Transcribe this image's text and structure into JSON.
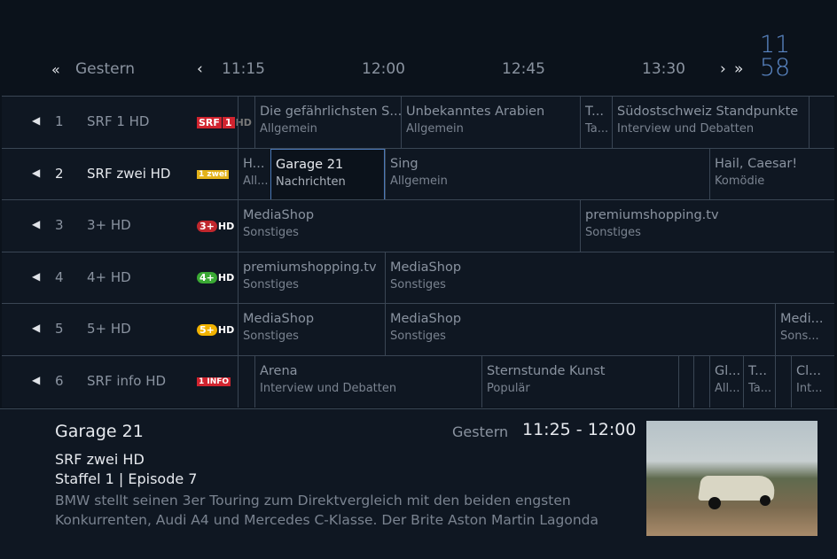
{
  "header": {
    "prev_day": "Gestern",
    "times": [
      "11:15",
      "12:00",
      "12:45",
      "13:30"
    ],
    "clock_hour": "11",
    "clock_min": "58"
  },
  "channels": [
    {
      "number": "1",
      "name": "SRF 1 HD",
      "logo": "SRF 1 HD",
      "programs": [
        {
          "t": "",
          "g": ""
        },
        {
          "t": "Die gefährlichsten S...",
          "g": "Allgemein"
        },
        {
          "t": "Unbekanntes Arabien",
          "g": "Allgemein"
        },
        {
          "t": "T...",
          "g": "Ta..."
        },
        {
          "t": "Südostschweiz Standpunkte",
          "g": "Interview und Debatten"
        },
        {
          "t": "",
          "g": ""
        }
      ]
    },
    {
      "number": "2",
      "name": "SRF zwei HD",
      "logo": "zwei",
      "programs": [
        {
          "t": "H...",
          "g": "All..."
        },
        {
          "t": "Garage 21",
          "g": "Nachrichten"
        },
        {
          "t": "Sing",
          "g": "Allgemein"
        },
        {
          "t": "Hail, Caesar!",
          "g": "Komödie"
        }
      ]
    },
    {
      "number": "3",
      "name": "3+ HD",
      "logo": "3+HD",
      "programs": [
        {
          "t": "MediaShop",
          "g": "Sonstiges"
        },
        {
          "t": "premiumshopping.tv",
          "g": "Sonstiges"
        }
      ]
    },
    {
      "number": "4",
      "name": "4+ HD",
      "logo": "4+HD",
      "programs": [
        {
          "t": "premiumshopping.tv",
          "g": "Sonstiges"
        },
        {
          "t": "MediaShop",
          "g": "Sonstiges"
        }
      ]
    },
    {
      "number": "5",
      "name": "5+ HD",
      "logo": "5+HD",
      "programs": [
        {
          "t": "MediaShop",
          "g": "Sonstiges"
        },
        {
          "t": "MediaShop",
          "g": "Sonstiges"
        },
        {
          "t": "Medi...",
          "g": "Sons..."
        }
      ]
    },
    {
      "number": "6",
      "name": "SRF info HD",
      "logo": "info",
      "programs": [
        {
          "t": "",
          "g": ""
        },
        {
          "t": "Arena",
          "g": "Interview und Debatten"
        },
        {
          "t": "Sternstunde Kunst",
          "g": "Populär"
        },
        {
          "t": "",
          "g": ""
        },
        {
          "t": "",
          "g": ""
        },
        {
          "t": "Gl...",
          "g": "All..."
        },
        {
          "t": "T...",
          "g": "Ta..."
        },
        {
          "t": "",
          "g": ""
        },
        {
          "t": "Cl...",
          "g": "Int..."
        }
      ]
    }
  ],
  "details": {
    "title": "Garage 21",
    "day": "Gestern",
    "time": "11:25 - 12:00",
    "channel": "SRF zwei HD",
    "episode": "Staffel 1 | Episode 7",
    "description": "BMW stellt seinen 3er Touring zum Direktvergleich mit den beiden engsten Konkurrenten, Audi A4 und Mercedes C-Klasse. Der Brite Aston Martin Lagonda"
  },
  "colors": {
    "background": "#0b121b",
    "accent": "#5a86c4",
    "selection": "#4a78b8"
  }
}
